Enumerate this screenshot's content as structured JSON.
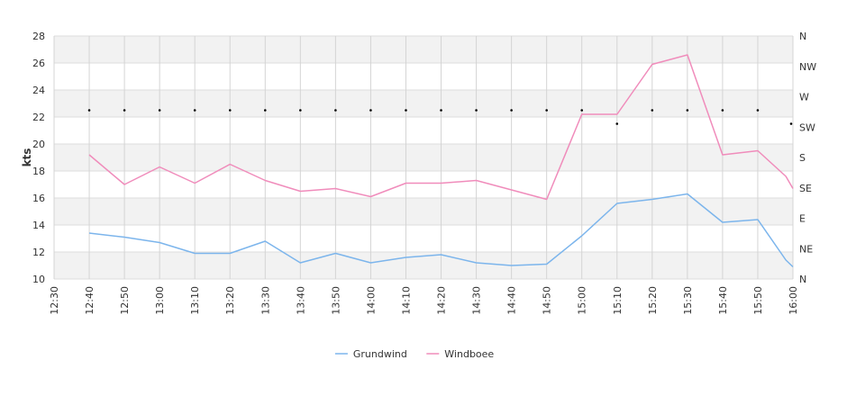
{
  "chart_data": {
    "type": "line",
    "ylabel": "kts",
    "ylim": [
      10,
      28
    ],
    "yticks": [
      10,
      12,
      14,
      16,
      18,
      20,
      22,
      24,
      26,
      28
    ],
    "right_axis_labels": [
      "N",
      "NE",
      "E",
      "SE",
      "S",
      "SW",
      "W",
      "NW",
      "N"
    ],
    "x": [
      "12:30",
      "12:40",
      "12:50",
      "13:00",
      "13:10",
      "13:20",
      "13:30",
      "13:40",
      "13:50",
      "14:00",
      "14:10",
      "14:20",
      "14:30",
      "14:40",
      "14:50",
      "15:00",
      "15:10",
      "15:20",
      "15:30",
      "15:40",
      "15:50",
      "16:00"
    ],
    "series": [
      {
        "name": "Grundwind",
        "color": "#7cb5ec",
        "points": [
          [
            "12:40",
            13.4
          ],
          [
            "12:50",
            13.1
          ],
          [
            "13:00",
            12.7
          ],
          [
            "13:10",
            11.9
          ],
          [
            "13:20",
            11.9
          ],
          [
            "13:30",
            12.8
          ],
          [
            "13:40",
            11.2
          ],
          [
            "13:50",
            11.9
          ],
          [
            "14:00",
            11.2
          ],
          [
            "14:10",
            11.6
          ],
          [
            "14:20",
            11.8
          ],
          [
            "14:30",
            11.2
          ],
          [
            "14:40",
            11.0
          ],
          [
            "14:50",
            11.1
          ],
          [
            "15:00",
            13.2
          ],
          [
            "15:10",
            15.6
          ],
          [
            "15:20",
            15.9
          ],
          [
            "15:30",
            16.3
          ],
          [
            "15:40",
            14.2
          ],
          [
            "15:50",
            14.4
          ],
          [
            "15:58",
            11.4
          ],
          [
            "16:00",
            10.9
          ]
        ]
      },
      {
        "name": "Windboee",
        "color": "#f08cbb",
        "points": [
          [
            "12:40",
            19.2
          ],
          [
            "12:50",
            17.0
          ],
          [
            "13:00",
            18.3
          ],
          [
            "13:10",
            17.1
          ],
          [
            "13:20",
            18.5
          ],
          [
            "13:30",
            17.3
          ],
          [
            "13:40",
            16.5
          ],
          [
            "13:50",
            16.7
          ],
          [
            "14:00",
            16.1
          ],
          [
            "14:10",
            17.1
          ],
          [
            "14:20",
            17.1
          ],
          [
            "14:30",
            17.3
          ],
          [
            "14:50",
            15.9
          ],
          [
            "15:00",
            22.2
          ],
          [
            "15:10",
            22.2
          ],
          [
            "15:20",
            25.9
          ],
          [
            "15:30",
            26.6
          ],
          [
            "15:40",
            19.2
          ],
          [
            "15:50",
            19.5
          ],
          [
            "15:58",
            17.6
          ],
          [
            "16:00",
            16.7
          ]
        ]
      }
    ],
    "direction_markers": [
      [
        "12:40",
        22.5
      ],
      [
        "12:50",
        22.5
      ],
      [
        "13:00",
        22.5
      ],
      [
        "13:10",
        22.5
      ],
      [
        "13:20",
        22.5
      ],
      [
        "13:30",
        22.5
      ],
      [
        "13:40",
        22.5
      ],
      [
        "13:50",
        22.5
      ],
      [
        "14:00",
        22.5
      ],
      [
        "14:10",
        22.5
      ],
      [
        "14:20",
        22.5
      ],
      [
        "14:30",
        22.5
      ],
      [
        "14:40",
        22.5
      ],
      [
        "14:50",
        22.5
      ],
      [
        "15:00",
        22.5
      ],
      [
        "15:10",
        21.5
      ],
      [
        "15:20",
        22.5
      ],
      [
        "15:30",
        22.5
      ],
      [
        "15:40",
        22.5
      ],
      [
        "15:50",
        22.5
      ],
      [
        "16:00",
        21.5
      ]
    ],
    "banded_grid": true,
    "legend_position": "bottom-center"
  }
}
